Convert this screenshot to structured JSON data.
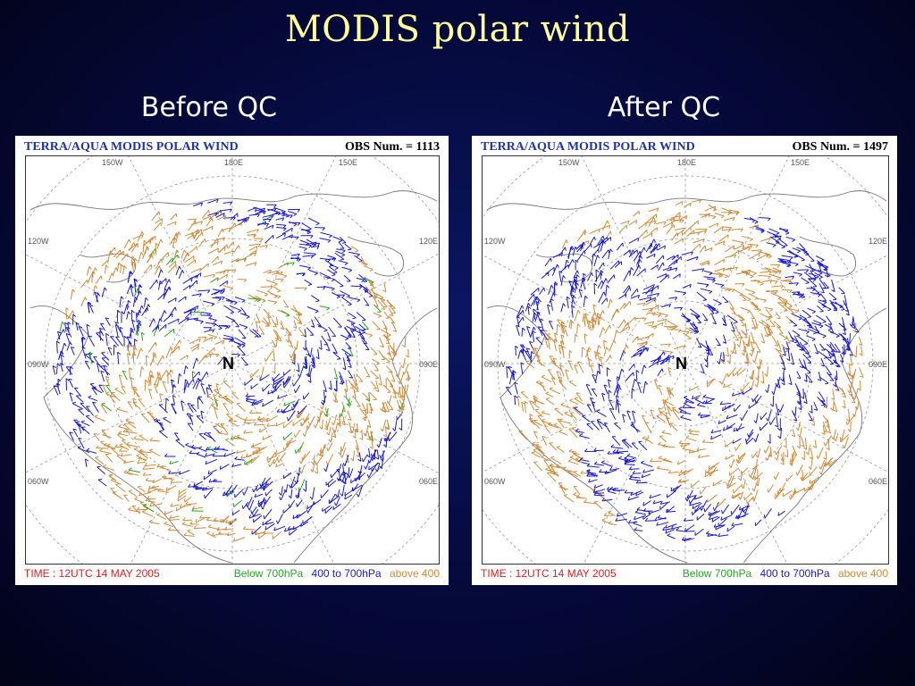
{
  "title": "MODIS polar wind",
  "panels": [
    {
      "heading": "Before QC",
      "map_title": "TERRA/AQUA MODIS POLAR WIND",
      "obs": "OBS Num. = 1113",
      "time": "TIME : 12UTC 14 MAY 2005",
      "pole_label": "N",
      "lon_labels": [
        "150W",
        "180E",
        "150E",
        "120W",
        "120E",
        "090W",
        "090E",
        "060W",
        "060E"
      ],
      "legend": {
        "green": "Below 700hPa",
        "blue": "400 to 700hPa",
        "orange": "above 400"
      }
    },
    {
      "heading": "After QC",
      "map_title": "TERRA/AQUA MODIS POLAR WIND",
      "obs": "OBS Num. = 1497",
      "time": "TIME : 12UTC 14 MAY 2005",
      "pole_label": "N",
      "lon_labels": [
        "150W",
        "180E",
        "150E",
        "120W",
        "120E",
        "090W",
        "090E",
        "060W",
        "060E"
      ],
      "legend": {
        "green": "Below 700hPa",
        "blue": "400 to 700hPa",
        "orange": "above 400"
      }
    }
  ],
  "colors": {
    "green": "#22aa22",
    "blue": "#1a1acc",
    "orange": "#d28a3a",
    "time_red": "#e0201f"
  }
}
